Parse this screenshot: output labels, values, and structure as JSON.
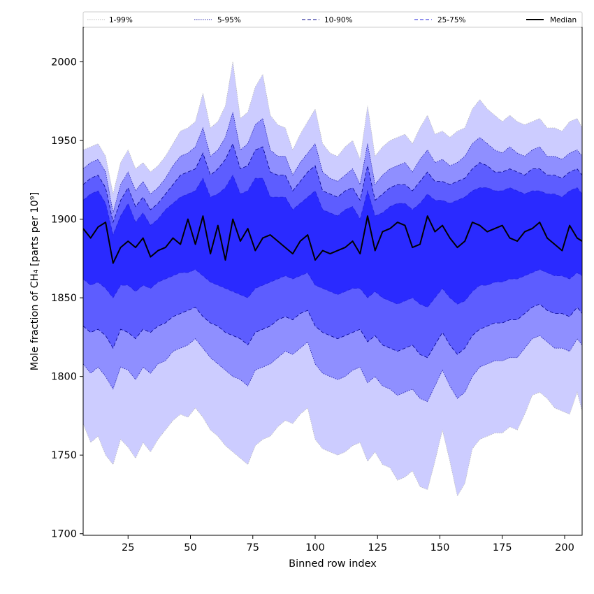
{
  "chart_data": {
    "type": "area",
    "xlabel": "Binned row index",
    "ylabel": "Mole fraction of CH₄ [parts per 10⁹]",
    "xlim": [
      7,
      207
    ],
    "ylim": [
      1699,
      2022
    ],
    "xticks": [
      25,
      50,
      75,
      100,
      125,
      150,
      175,
      200
    ],
    "yticks": [
      1700,
      1750,
      1800,
      1850,
      1900,
      1950,
      2000
    ],
    "grid": false,
    "legend_position": "top",
    "x": [
      7,
      10,
      13,
      16,
      19,
      22,
      25,
      28,
      31,
      34,
      37,
      40,
      43,
      46,
      49,
      52,
      55,
      58,
      61,
      64,
      67,
      70,
      73,
      76,
      79,
      82,
      85,
      88,
      91,
      94,
      97,
      100,
      103,
      106,
      109,
      112,
      115,
      118,
      121,
      124,
      127,
      130,
      133,
      136,
      139,
      142,
      145,
      148,
      151,
      154,
      157,
      160,
      163,
      166,
      169,
      172,
      175,
      178,
      181,
      184,
      187,
      190,
      193,
      196,
      199,
      202,
      205,
      207
    ],
    "bands": [
      {
        "name": "1-99%",
        "color": "#ccccff",
        "line_color": "#bbbbbb",
        "line_style": "dotted",
        "lower": [
          1770,
          1758,
          1762,
          1750,
          1744,
          1760,
          1755,
          1748,
          1758,
          1752,
          1760,
          1766,
          1772,
          1776,
          1774,
          1780,
          1774,
          1766,
          1762,
          1756,
          1752,
          1748,
          1744,
          1756,
          1760,
          1762,
          1768,
          1772,
          1770,
          1776,
          1780,
          1760,
          1754,
          1752,
          1750,
          1752,
          1756,
          1758,
          1746,
          1752,
          1744,
          1742,
          1734,
          1736,
          1740,
          1730,
          1728,
          1746,
          1766,
          1746,
          1724,
          1732,
          1754,
          1760,
          1762,
          1764,
          1764,
          1768,
          1766,
          1776,
          1788,
          1790,
          1786,
          1780,
          1778,
          1776,
          1790,
          1778
        ],
        "upper": [
          1944,
          1946,
          1948,
          1940,
          1916,
          1936,
          1944,
          1932,
          1936,
          1930,
          1934,
          1940,
          1948,
          1956,
          1958,
          1962,
          1980,
          1958,
          1962,
          1972,
          2000,
          1964,
          1968,
          1984,
          1992,
          1966,
          1960,
          1958,
          1944,
          1954,
          1962,
          1970,
          1948,
          1942,
          1940,
          1946,
          1950,
          1938,
          1972,
          1940,
          1946,
          1950,
          1952,
          1954,
          1948,
          1958,
          1966,
          1954,
          1956,
          1952,
          1956,
          1958,
          1970,
          1976,
          1970,
          1966,
          1962,
          1966,
          1962,
          1960,
          1962,
          1964,
          1958,
          1958,
          1956,
          1962,
          1964,
          1958
        ]
      },
      {
        "name": "5-95%",
        "color": "#8f8fff",
        "line_color": "#2222aa",
        "line_style": "dotted",
        "lower": [
          1808,
          1802,
          1806,
          1800,
          1792,
          1806,
          1804,
          1798,
          1806,
          1802,
          1808,
          1810,
          1816,
          1818,
          1820,
          1824,
          1818,
          1812,
          1808,
          1804,
          1800,
          1798,
          1794,
          1804,
          1806,
          1808,
          1812,
          1816,
          1814,
          1818,
          1822,
          1808,
          1802,
          1800,
          1798,
          1800,
          1804,
          1806,
          1796,
          1800,
          1794,
          1792,
          1788,
          1790,
          1792,
          1786,
          1784,
          1794,
          1804,
          1794,
          1786,
          1790,
          1800,
          1806,
          1808,
          1810,
          1810,
          1812,
          1812,
          1818,
          1824,
          1826,
          1822,
          1818,
          1818,
          1816,
          1824,
          1820
        ],
        "upper": [
          1932,
          1936,
          1938,
          1930,
          1904,
          1922,
          1930,
          1918,
          1924,
          1916,
          1920,
          1926,
          1934,
          1940,
          1942,
          1946,
          1958,
          1940,
          1944,
          1952,
          1968,
          1944,
          1948,
          1960,
          1964,
          1944,
          1940,
          1940,
          1928,
          1936,
          1942,
          1948,
          1930,
          1926,
          1924,
          1928,
          1932,
          1922,
          1948,
          1922,
          1928,
          1932,
          1934,
          1936,
          1930,
          1938,
          1944,
          1936,
          1938,
          1934,
          1936,
          1940,
          1948,
          1952,
          1948,
          1944,
          1942,
          1946,
          1942,
          1940,
          1944,
          1946,
          1940,
          1940,
          1938,
          1942,
          1944,
          1940
        ]
      },
      {
        "name": "10-90%",
        "color": "#5d5dff",
        "line_color": "#000088",
        "line_style": "dashed",
        "lower": [
          1832,
          1828,
          1830,
          1826,
          1818,
          1830,
          1828,
          1824,
          1830,
          1828,
          1832,
          1834,
          1838,
          1840,
          1842,
          1844,
          1838,
          1834,
          1832,
          1828,
          1826,
          1824,
          1820,
          1828,
          1830,
          1832,
          1836,
          1838,
          1836,
          1840,
          1842,
          1832,
          1828,
          1826,
          1824,
          1826,
          1828,
          1830,
          1822,
          1826,
          1820,
          1818,
          1816,
          1818,
          1820,
          1814,
          1812,
          1820,
          1828,
          1820,
          1814,
          1818,
          1826,
          1830,
          1832,
          1834,
          1834,
          1836,
          1836,
          1840,
          1844,
          1846,
          1842,
          1840,
          1840,
          1838,
          1844,
          1840
        ],
        "upper": [
          1922,
          1926,
          1928,
          1920,
          1898,
          1912,
          1920,
          1908,
          1914,
          1906,
          1910,
          1916,
          1922,
          1928,
          1930,
          1932,
          1942,
          1928,
          1932,
          1938,
          1948,
          1932,
          1934,
          1944,
          1946,
          1930,
          1928,
          1928,
          1918,
          1924,
          1930,
          1934,
          1918,
          1916,
          1914,
          1918,
          1920,
          1912,
          1934,
          1912,
          1916,
          1920,
          1922,
          1922,
          1918,
          1924,
          1930,
          1924,
          1924,
          1922,
          1924,
          1926,
          1932,
          1936,
          1934,
          1930,
          1930,
          1932,
          1930,
          1928,
          1932,
          1932,
          1928,
          1928,
          1926,
          1930,
          1932,
          1928
        ]
      },
      {
        "name": "25-75%",
        "color": "#2a2aff",
        "line_color": "#2222dd",
        "line_style": "dashed",
        "lower": [
          1862,
          1858,
          1860,
          1856,
          1850,
          1858,
          1858,
          1854,
          1858,
          1856,
          1860,
          1862,
          1864,
          1866,
          1866,
          1868,
          1864,
          1860,
          1858,
          1856,
          1854,
          1852,
          1850,
          1856,
          1858,
          1860,
          1862,
          1864,
          1862,
          1864,
          1866,
          1858,
          1856,
          1854,
          1852,
          1854,
          1856,
          1856,
          1850,
          1854,
          1850,
          1848,
          1846,
          1848,
          1850,
          1846,
          1844,
          1850,
          1856,
          1850,
          1846,
          1848,
          1854,
          1858,
          1858,
          1860,
          1860,
          1862,
          1862,
          1864,
          1866,
          1868,
          1866,
          1864,
          1864,
          1862,
          1866,
          1864
        ],
        "upper": [
          1912,
          1916,
          1918,
          1910,
          1890,
          1902,
          1910,
          1898,
          1904,
          1896,
          1900,
          1906,
          1910,
          1914,
          1916,
          1918,
          1926,
          1914,
          1916,
          1920,
          1928,
          1916,
          1918,
          1926,
          1926,
          1914,
          1914,
          1914,
          1906,
          1910,
          1914,
          1918,
          1906,
          1904,
          1902,
          1906,
          1908,
          1900,
          1918,
          1902,
          1904,
          1908,
          1910,
          1910,
          1906,
          1910,
          1916,
          1912,
          1912,
          1910,
          1912,
          1914,
          1918,
          1920,
          1920,
          1918,
          1918,
          1920,
          1918,
          1916,
          1918,
          1918,
          1916,
          1916,
          1914,
          1918,
          1920,
          1916
        ]
      }
    ],
    "median": {
      "name": "Median",
      "color": "#000000",
      "values": [
        1894,
        1888,
        1895,
        1898,
        1872,
        1882,
        1886,
        1882,
        1888,
        1876,
        1880,
        1882,
        1888,
        1884,
        1900,
        1884,
        1902,
        1878,
        1896,
        1874,
        1900,
        1886,
        1894,
        1880,
        1888,
        1890,
        1886,
        1882,
        1878,
        1886,
        1890,
        1874,
        1880,
        1878,
        1880,
        1882,
        1886,
        1878,
        1902,
        1880,
        1892,
        1894,
        1898,
        1896,
        1882,
        1884,
        1902,
        1892,
        1896,
        1888,
        1882,
        1886,
        1898,
        1896,
        1892,
        1894,
        1896,
        1888,
        1886,
        1892,
        1894,
        1898,
        1888,
        1884,
        1880,
        1896,
        1888,
        1886
      ]
    }
  }
}
